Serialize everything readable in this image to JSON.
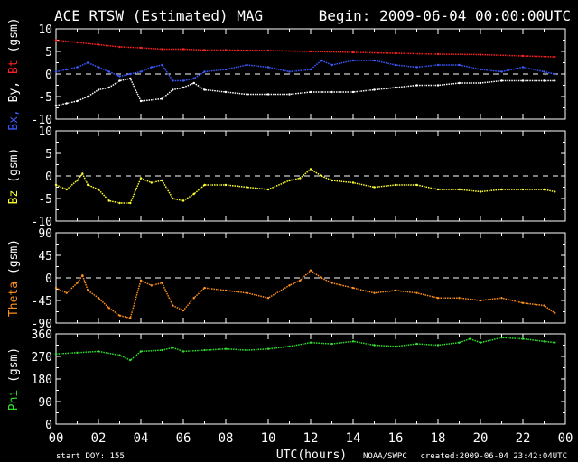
{
  "header": {
    "title": "ACE RTSW (Estimated) MAG",
    "begin": "Begin: 2009-06-04 00:00:00UTC"
  },
  "footer": {
    "start_doy": "start DOY:  155",
    "xlabel": "UTC(hours)",
    "source": "NOAA/SWPC",
    "created": "created:2009-06-04 23:42:04UTC"
  },
  "colors": {
    "bx": "#3a5aff",
    "by": "#ffffff",
    "bt": "#ff2020",
    "bz": "#ffff30",
    "theta": "#ff9020",
    "phi": "#30e030",
    "frame": "#ffffff"
  },
  "chart_data": [
    {
      "type": "line",
      "ylabel_parts": [
        {
          "text": "Bx,",
          "color_key": "bx"
        },
        {
          "text": " By,",
          "color_key": "by"
        },
        {
          "text": " Bt",
          "color_key": "bt"
        },
        {
          "text": "  (gsm)",
          "color_key": "frame"
        }
      ],
      "ylim": [
        -10,
        10
      ],
      "yticks": [
        -10,
        -5,
        0,
        5,
        10
      ],
      "zero_line": 0,
      "series": [
        {
          "name": "Bt",
          "color_key": "bt",
          "x": [
            0,
            1,
            2,
            3,
            4,
            5,
            6,
            7,
            8,
            10,
            12,
            14,
            16,
            18,
            20,
            22,
            23.5
          ],
          "y": [
            7.5,
            7,
            6.5,
            6,
            5.8,
            5.5,
            5.5,
            5.3,
            5.3,
            5.2,
            5,
            4.8,
            4.6,
            4.4,
            4.3,
            4,
            3.8
          ]
        },
        {
          "name": "Bx",
          "color_key": "bx",
          "x": [
            0,
            0.5,
            1,
            1.5,
            2,
            2.5,
            3,
            3.5,
            4,
            4.5,
            5,
            5.5,
            6,
            6.5,
            7,
            8,
            9,
            10,
            11,
            12,
            12.5,
            13,
            14,
            15,
            16,
            17,
            18,
            19,
            20,
            21,
            22,
            23,
            23.5
          ],
          "y": [
            0.5,
            1,
            1.5,
            2.5,
            1.5,
            0.5,
            -0.5,
            0,
            0.5,
            1.5,
            2,
            -1.5,
            -1.5,
            -1,
            0.5,
            1,
            2,
            1.5,
            0.5,
            1,
            3,
            2,
            3,
            3,
            2,
            1.5,
            2,
            2,
            1,
            0.5,
            1.5,
            0.5,
            0
          ]
        },
        {
          "name": "By",
          "color_key": "by",
          "x": [
            0,
            0.5,
            1,
            1.5,
            2,
            2.5,
            3,
            3.5,
            4,
            5,
            5.5,
            6,
            6.5,
            7,
            8,
            9,
            10,
            11,
            12,
            13,
            14,
            15,
            16,
            17,
            18,
            19,
            20,
            21,
            22,
            23,
            23.5
          ],
          "y": [
            -7,
            -6.5,
            -6,
            -5,
            -3.5,
            -3,
            -1.5,
            -1,
            -6,
            -5.5,
            -3.5,
            -3,
            -2,
            -3.5,
            -4,
            -4.5,
            -4.5,
            -4.5,
            -4,
            -4,
            -4,
            -3.5,
            -3,
            -2.5,
            -2.5,
            -2,
            -2,
            -1.5,
            -1.5,
            -1.5,
            -1.5
          ]
        }
      ]
    },
    {
      "type": "line",
      "ylabel_parts": [
        {
          "text": "Bz",
          "color_key": "bz"
        },
        {
          "text": "  (gsm)",
          "color_key": "frame"
        }
      ],
      "ylim": [
        -10,
        10
      ],
      "yticks": [
        -10,
        -5,
        0,
        5,
        10
      ],
      "zero_line": 0,
      "series": [
        {
          "name": "Bz",
          "color_key": "bz",
          "x": [
            0,
            0.5,
            1,
            1.25,
            1.5,
            2,
            2.5,
            3,
            3.5,
            4,
            4.5,
            5,
            5.5,
            6,
            6.5,
            7,
            8,
            9,
            10,
            11,
            11.5,
            12,
            12.5,
            13,
            14,
            15,
            16,
            17,
            18,
            19,
            20,
            21,
            22,
            23,
            23.5
          ],
          "y": [
            -2,
            -3,
            -1,
            0.5,
            -2,
            -3,
            -5.5,
            -6,
            -6,
            -0.5,
            -1.5,
            -1,
            -5,
            -5.5,
            -4,
            -2,
            -2,
            -2.5,
            -3,
            -1,
            -0.5,
            1.5,
            0,
            -1,
            -1.5,
            -2.5,
            -2,
            -2,
            -3,
            -3,
            -3.5,
            -3,
            -3,
            -3,
            -3.5
          ]
        }
      ]
    },
    {
      "type": "line",
      "ylabel_parts": [
        {
          "text": "Theta",
          "color_key": "theta"
        },
        {
          "text": "  (gsm)",
          "color_key": "frame"
        }
      ],
      "ylim": [
        -90,
        90
      ],
      "yticks": [
        -90,
        -45,
        0,
        45,
        90
      ],
      "zero_line": 0,
      "series": [
        {
          "name": "Theta",
          "color_key": "theta",
          "x": [
            0,
            0.5,
            1,
            1.25,
            1.5,
            2,
            2.5,
            3,
            3.5,
            4,
            4.5,
            5,
            5.5,
            6,
            6.5,
            7,
            8,
            9,
            10,
            11,
            11.5,
            12,
            12.5,
            13,
            14,
            15,
            16,
            17,
            18,
            19,
            20,
            21,
            22,
            23,
            23.5
          ],
          "y": [
            -20,
            -30,
            -10,
            5,
            -25,
            -40,
            -60,
            -75,
            -80,
            -5,
            -15,
            -10,
            -55,
            -65,
            -40,
            -20,
            -25,
            -30,
            -40,
            -15,
            -5,
            15,
            0,
            -10,
            -20,
            -30,
            -25,
            -30,
            -40,
            -40,
            -45,
            -40,
            -50,
            -55,
            -70
          ]
        }
      ]
    },
    {
      "type": "line",
      "ylabel_parts": [
        {
          "text": "Phi",
          "color_key": "phi"
        },
        {
          "text": "  (gsm)",
          "color_key": "frame"
        }
      ],
      "ylim": [
        0,
        360
      ],
      "yticks": [
        0,
        90,
        180,
        270,
        360
      ],
      "zero_line": null,
      "series": [
        {
          "name": "Phi",
          "color_key": "phi",
          "x": [
            0,
            1,
            2,
            3,
            3.5,
            4,
            5,
            5.5,
            6,
            7,
            8,
            9,
            10,
            11,
            12,
            13,
            14,
            15,
            16,
            17,
            18,
            19,
            19.5,
            20,
            21,
            22,
            23,
            23.5
          ],
          "y": [
            280,
            285,
            290,
            275,
            255,
            290,
            295,
            305,
            290,
            295,
            300,
            295,
            300,
            310,
            325,
            320,
            330,
            315,
            310,
            320,
            315,
            325,
            340,
            325,
            345,
            340,
            330,
            325
          ]
        }
      ]
    }
  ],
  "xaxis": {
    "range": [
      0,
      24
    ],
    "tick_labels": [
      "00",
      "02",
      "04",
      "06",
      "08",
      "10",
      "12",
      "14",
      "16",
      "18",
      "20",
      "22",
      "00"
    ]
  }
}
